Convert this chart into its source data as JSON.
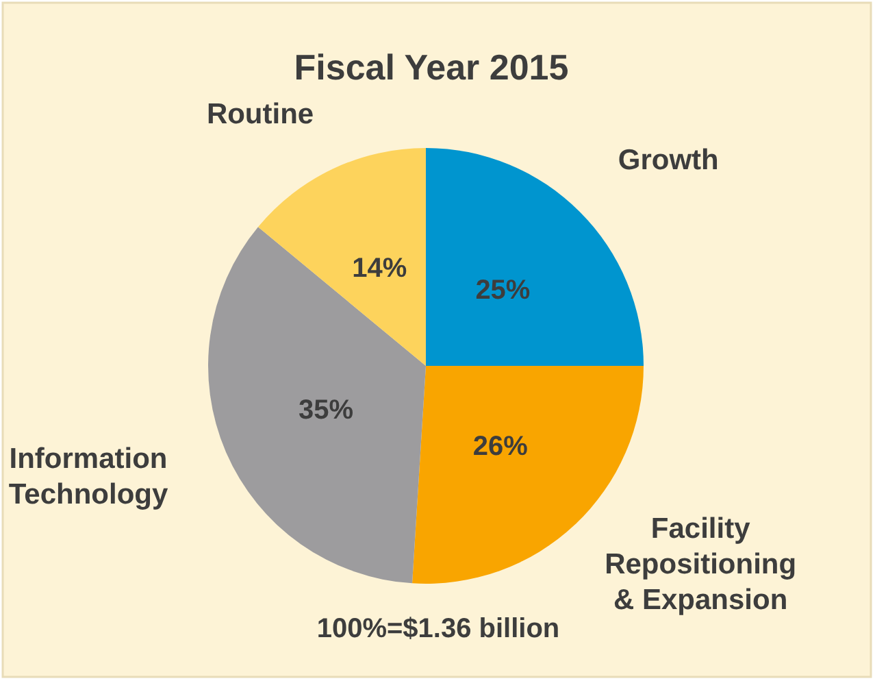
{
  "chart_data": {
    "type": "pie",
    "title": "Fiscal Year 2015",
    "categories": [
      "Growth",
      "Facility Repositioning & Expansion",
      "Information Technology",
      "Routine"
    ],
    "values": [
      25,
      26,
      35,
      14
    ],
    "value_labels": [
      "25%",
      "26%",
      "35%",
      "14%"
    ],
    "colors": [
      "#0095cf",
      "#f9a500",
      "#9d9c9e",
      "#fdd35c"
    ],
    "annotations": [
      "100%=$1.36 billion"
    ]
  }
}
